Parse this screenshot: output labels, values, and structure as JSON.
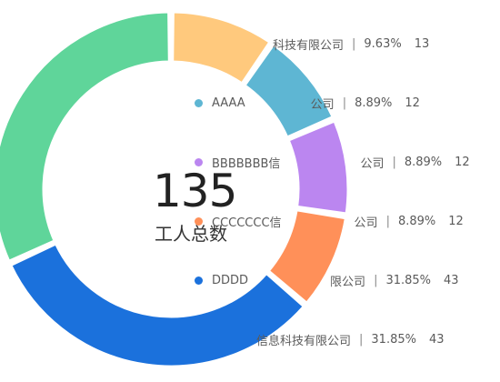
{
  "chart_data": {
    "type": "pie",
    "donut": true,
    "title": "",
    "center": {
      "total": "135",
      "label": "工人总数"
    },
    "slices": [
      {
        "label": "AAAA",
        "percent": "9.63%",
        "value": 13,
        "color": "#FFC97D",
        "legend_text": "科技有限公司",
        "show_dot": false
      },
      {
        "label": "AAAA",
        "percent": "8.89%",
        "value": 12,
        "color": "#5EB6D3",
        "legend_text": "AAAA",
        "show_dot": true,
        "legend_suffix": "公司"
      },
      {
        "label": "BBBBBBB信",
        "percent": "8.89%",
        "value": 12,
        "color": "#BB86F0",
        "legend_text": "BBBBBBB信",
        "show_dot": true,
        "legend_suffix": "公司"
      },
      {
        "label": "CCCCCCC信",
        "percent": "8.89%",
        "value": 12,
        "color": "#FF9059",
        "legend_text": "CCCCCCC信",
        "show_dot": true,
        "legend_suffix": "公司"
      },
      {
        "label": "DDDD",
        "percent": "31.85%",
        "value": 43,
        "color": "#1B71DC",
        "legend_text": "DDDD",
        "show_dot": true,
        "legend_suffix": "限公司"
      },
      {
        "label": "信息科技有限公司",
        "percent": "31.85%",
        "value": 43,
        "color": "#5FD59A",
        "legend_text": "信息科技有限公司",
        "show_dot": false
      }
    ],
    "legend_placement": "right"
  }
}
